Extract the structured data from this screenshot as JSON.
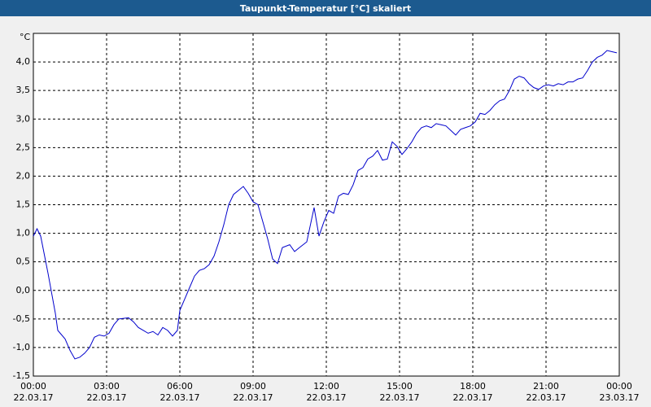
{
  "chart_data": {
    "type": "line",
    "title": "Taupunkt-Temperatur [°C] skaliert",
    "unit": "°C",
    "xlim": [
      0,
      24
    ],
    "ylim": [
      -1.5,
      4.5
    ],
    "grid": true,
    "xticks": [
      {
        "value": 0,
        "label": "00:00\n22.03.17"
      },
      {
        "value": 3,
        "label": "03:00\n22.03.17"
      },
      {
        "value": 6,
        "label": "06:00\n22.03.17"
      },
      {
        "value": 9,
        "label": "09:00\n22.03.17"
      },
      {
        "value": 12,
        "label": "12:00\n22.03.17"
      },
      {
        "value": 15,
        "label": "15:00\n22.03.17"
      },
      {
        "value": 18,
        "label": "18:00\n22.03.17"
      },
      {
        "value": 21,
        "label": "21:00\n22.03.17"
      },
      {
        "value": 24,
        "label": "00:00\n23.03.17"
      }
    ],
    "yticks": [
      {
        "value": -1.5,
        "label": "-1,5"
      },
      {
        "value": -1,
        "label": "-1,0"
      },
      {
        "value": -0.5,
        "label": "-0,5"
      },
      {
        "value": 0,
        "label": "0,0"
      },
      {
        "value": 0.5,
        "label": "0,5"
      },
      {
        "value": 1,
        "label": "1,0"
      },
      {
        "value": 1.5,
        "label": "1,5"
      },
      {
        "value": 2,
        "label": "2,0"
      },
      {
        "value": 2.5,
        "label": "2,5"
      },
      {
        "value": 3,
        "label": "3,0"
      },
      {
        "value": 3.5,
        "label": "3,5"
      },
      {
        "value": 4,
        "label": "4,0"
      }
    ],
    "series": [
      {
        "color": "#0000cc",
        "x": [
          0,
          0.15,
          0.3,
          0.6,
          0.9,
          1.0,
          1.3,
          1.5,
          1.7,
          1.9,
          2.1,
          2.3,
          2.5,
          2.7,
          2.9,
          3.1,
          3.3,
          3.5,
          3.7,
          3.9,
          4.1,
          4.3,
          4.5,
          4.7,
          4.9,
          5.1,
          5.3,
          5.5,
          5.7,
          5.9,
          6.0,
          6.2,
          6.4,
          6.6,
          6.8,
          7.0,
          7.2,
          7.4,
          7.6,
          7.8,
          8.0,
          8.2,
          8.4,
          8.6,
          8.8,
          9.0,
          9.2,
          9.4,
          9.6,
          9.8,
          10.0,
          10.2,
          10.5,
          10.7,
          10.9,
          11.2,
          11.5,
          11.7,
          11.9,
          12.1,
          12.3,
          12.5,
          12.7,
          12.9,
          13.1,
          13.3,
          13.5,
          13.7,
          13.9,
          14.1,
          14.3,
          14.5,
          14.7,
          14.9,
          15.1,
          15.3,
          15.5,
          15.7,
          15.9,
          16.1,
          16.3,
          16.5,
          16.7,
          16.9,
          17.1,
          17.3,
          17.5,
          17.7,
          17.9,
          18.1,
          18.3,
          18.5,
          18.7,
          18.9,
          19.1,
          19.3,
          19.5,
          19.7,
          19.9,
          20.1,
          20.3,
          20.5,
          20.7,
          20.9,
          21.1,
          21.3,
          21.5,
          21.7,
          21.9,
          22.1,
          22.3,
          22.5,
          22.7,
          22.9,
          23.1,
          23.3,
          23.5,
          23.7,
          23.9
        ],
        "values": [
          0.95,
          1.08,
          0.95,
          0.3,
          -0.4,
          -0.7,
          -0.85,
          -1.05,
          -1.2,
          -1.17,
          -1.1,
          -1.0,
          -0.82,
          -0.78,
          -0.8,
          -0.75,
          -0.6,
          -0.5,
          -0.49,
          -0.48,
          -0.55,
          -0.65,
          -0.7,
          -0.75,
          -0.72,
          -0.78,
          -0.65,
          -0.7,
          -0.8,
          -0.7,
          -0.35,
          -0.15,
          0.05,
          0.25,
          0.35,
          0.38,
          0.45,
          0.6,
          0.85,
          1.15,
          1.5,
          1.68,
          1.75,
          1.82,
          1.7,
          1.55,
          1.5,
          1.2,
          0.9,
          0.55,
          0.47,
          0.75,
          0.8,
          0.68,
          0.75,
          0.85,
          1.45,
          0.95,
          1.2,
          1.4,
          1.35,
          1.65,
          1.7,
          1.68,
          1.85,
          2.1,
          2.15,
          2.3,
          2.35,
          2.45,
          2.28,
          2.3,
          2.6,
          2.52,
          2.38,
          2.48,
          2.6,
          2.75,
          2.85,
          2.88,
          2.85,
          2.92,
          2.9,
          2.88,
          2.8,
          2.72,
          2.82,
          2.85,
          2.88,
          2.95,
          3.1,
          3.08,
          3.15,
          3.25,
          3.32,
          3.35,
          3.5,
          3.7,
          3.75,
          3.72,
          3.62,
          3.55,
          3.52,
          3.58,
          3.6,
          3.58,
          3.62,
          3.6,
          3.65,
          3.65,
          3.7,
          3.72,
          3.85,
          4.0,
          4.08,
          4.12,
          4.2,
          4.18,
          4.16
        ]
      }
    ]
  }
}
